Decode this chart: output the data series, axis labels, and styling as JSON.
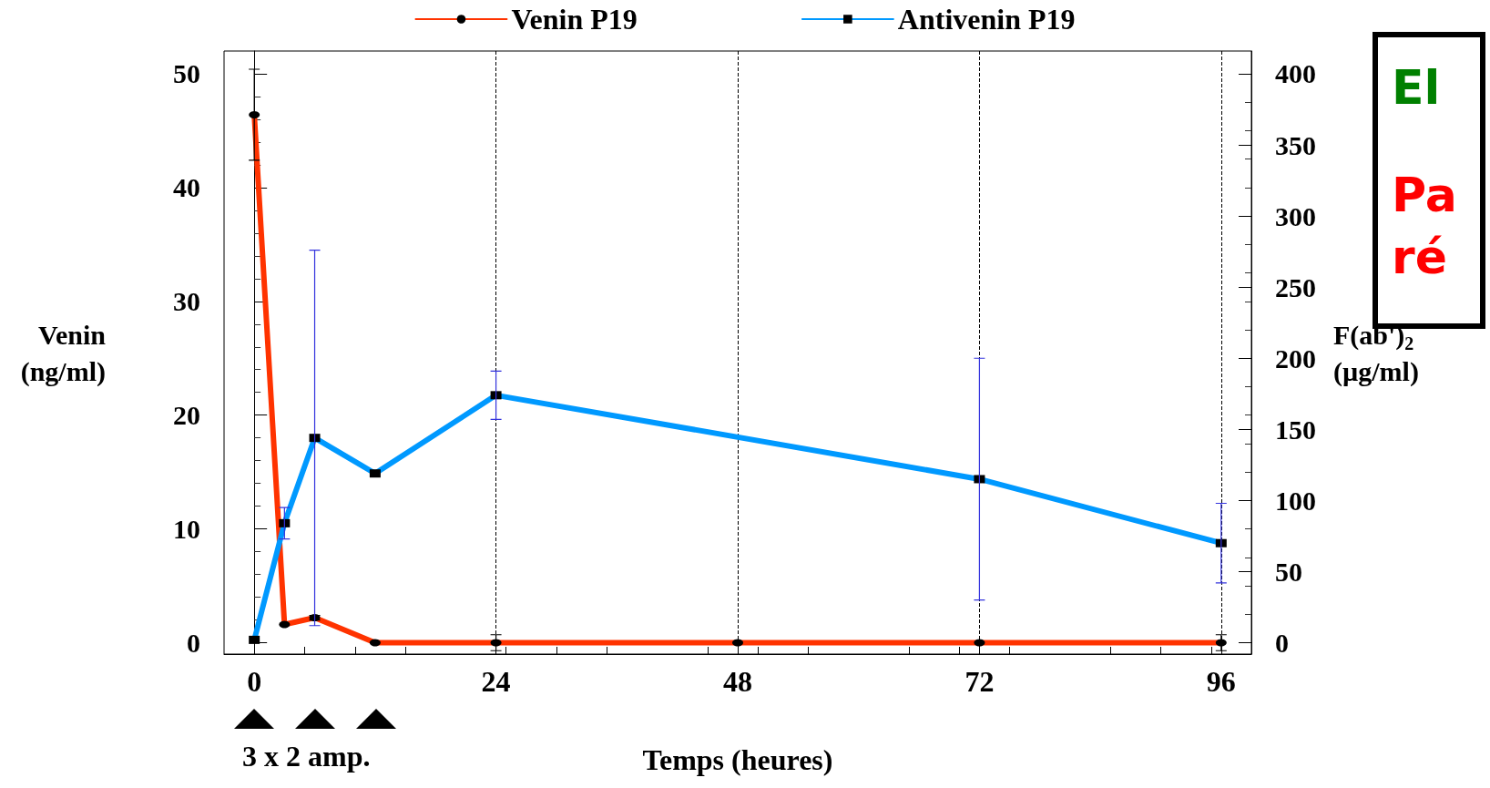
{
  "chart_data": {
    "type": "line",
    "xlabel": "Temps (heures)",
    "ylabel": "Venin\n(ng/ml)",
    "y2label": "F(ab')$_{2}$\n(µg/ml)",
    "series": [
      {
        "name": "Venin P19",
        "color": "#ff3300",
        "marker": "circle",
        "x": [
          0,
          3,
          6,
          12,
          24,
          48,
          72,
          96
        ],
        "values": [
          46.4,
          1.6,
          2.2,
          0,
          0,
          0,
          0,
          0
        ],
        "errors": [
          4,
          null,
          0.2,
          null,
          0.7,
          null,
          null,
          0.7
        ]
      },
      {
        "name": "Antivenin P19",
        "color": "#0099ff",
        "marker": "square",
        "axis": "y2",
        "x": [
          0,
          3,
          6,
          12,
          24,
          72,
          96
        ],
        "values": [
          2,
          84,
          144,
          119,
          174,
          115,
          70
        ],
        "errors": [
          null,
          11,
          132,
          null,
          17,
          85,
          28
        ]
      }
    ],
    "xlim": [
      -3,
      99
    ],
    "xticks": [
      0,
      24,
      48,
      72,
      96
    ],
    "ylim": [
      -1,
      52
    ],
    "yticks": [
      0,
      10,
      20,
      30,
      40,
      50
    ],
    "y2lim": [
      -8,
      416
    ],
    "y2ticks": [
      0,
      50,
      100,
      150,
      200,
      250,
      300,
      350,
      400
    ],
    "grid": "x",
    "legend": "top",
    "line_style": "solid",
    "annotations": [
      "3 x 2 amp.",
      "El",
      "Pa",
      "ré"
    ]
  }
}
